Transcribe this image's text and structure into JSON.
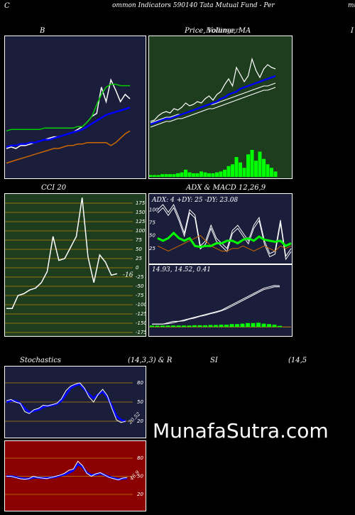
{
  "header": {
    "left_letter": "C",
    "title": "ommon  Indicators 590140  Tata  Mutual Fund  -  Per",
    "right_cut": "mu"
  },
  "panel_titles": {
    "bollinger": "B",
    "price": "Price,",
    "price_overlap": "Volume, MA",
    "price_overlap2": "Bollinger",
    "right_cut": "I",
    "cci": "CCI 20",
    "adx_macd": "ADX  & MACD 12,26,9",
    "stoch_left": "Stochastics",
    "stoch_params": "(14,3,3) & R",
    "rsi_mid": "SI",
    "rsi_params": "(14,5"
  },
  "watermark": "MunafaSutra.com",
  "colors": {
    "navy": "#1b1e3a",
    "green_panel": "#1e3d1e",
    "red_panel": "#8b0000",
    "blue_line": "#0000ff",
    "green_line": "#00cc00",
    "orange_line": "#cc6600",
    "volume_bar": "#00ff00"
  },
  "chart_data": [
    {
      "type": "line",
      "name": "bollinger",
      "series": [
        {
          "color": "#ffffff",
          "values": [
            118,
            119,
            118,
            120,
            120,
            121,
            122,
            123,
            124,
            125,
            126,
            126,
            127,
            128,
            129,
            131,
            133,
            136,
            140,
            142,
            160,
            150,
            165,
            158,
            150,
            155,
            152
          ]
        },
        {
          "color": "#0000ff",
          "values": [
            119,
            120,
            120,
            121,
            121,
            122,
            122,
            123,
            124,
            124,
            125,
            126,
            127,
            128,
            129,
            130,
            131,
            133,
            135,
            137,
            139,
            141,
            142,
            143,
            144,
            145,
            146
          ]
        },
        {
          "color": "#00cc00",
          "values": [
            130,
            131,
            131,
            131,
            131,
            131,
            131,
            131,
            132,
            132,
            132,
            132,
            132,
            132,
            132,
            133,
            133,
            136,
            140,
            148,
            155,
            160,
            162,
            162,
            161,
            161,
            161
          ]
        },
        {
          "color": "#cc6600",
          "values": [
            108,
            109,
            110,
            111,
            112,
            113,
            114,
            115,
            116,
            117,
            118,
            118,
            119,
            120,
            120,
            121,
            121,
            122,
            122,
            122,
            122,
            122,
            120,
            122,
            125,
            128,
            130
          ]
        }
      ],
      "ylim": [
        100,
        190
      ]
    },
    {
      "type": "line+bar",
      "name": "price-volume",
      "series": [
        {
          "color": "#ffffff",
          "values": [
            120,
            121,
            124,
            126,
            127,
            126,
            129,
            128,
            130,
            133,
            131,
            132,
            134,
            133,
            136,
            138,
            135,
            139,
            141,
            146,
            150,
            145,
            158,
            153,
            148,
            152,
            164,
            156,
            151,
            157,
            160,
            158,
            157
          ]
        },
        {
          "color": "#0000ff",
          "values": [
            118,
            119,
            120,
            121,
            122,
            122,
            123,
            124,
            125,
            126,
            127,
            128,
            129,
            130,
            131,
            132,
            133,
            134,
            136,
            137,
            139,
            140,
            141,
            143,
            144,
            145,
            146,
            147,
            148,
            149,
            150,
            151,
            152
          ]
        },
        {
          "color": "#cccccc",
          "values": [
            116,
            117,
            118,
            119,
            120,
            120,
            121,
            122,
            122,
            123,
            124,
            125,
            126,
            127,
            128,
            129,
            129,
            130,
            131,
            132,
            133,
            134,
            135,
            136,
            137,
            138,
            139,
            140,
            141,
            142,
            142,
            143,
            144
          ]
        }
      ],
      "volume": [
        2,
        2,
        2,
        3,
        3,
        3,
        3,
        4,
        5,
        8,
        5,
        4,
        4,
        6,
        5,
        4,
        4,
        5,
        6,
        8,
        12,
        14,
        22,
        16,
        10,
        25,
        30,
        18,
        28,
        20,
        14,
        10,
        6
      ],
      "ylim": [
        100,
        175
      ]
    },
    {
      "type": "line",
      "name": "cci",
      "title": "CCI 20",
      "y_ticks": [
        175,
        150,
        125,
        100,
        75,
        50,
        25,
        0,
        -25,
        -50,
        -75,
        -100,
        -125,
        -150,
        -175
      ],
      "ylim": [
        -175,
        175
      ],
      "values": [
        -110,
        -110,
        -75,
        -70,
        -60,
        -55,
        -40,
        -10,
        85,
        20,
        25,
        55,
        85,
        190,
        30,
        -40,
        35,
        15,
        -20,
        -16
      ],
      "last_label": "-16"
    },
    {
      "type": "line",
      "name": "adx",
      "title": "ADX: 4  +DY: 25 -DY: 23.08",
      "y_ticks": [
        100,
        75,
        50,
        25
      ],
      "ylim": [
        0,
        110
      ],
      "series": [
        {
          "color": "#ffffff",
          "values": [
            100,
            110,
            95,
            110,
            85,
            55,
            100,
            90,
            30,
            40,
            70,
            45,
            35,
            25,
            60,
            70,
            55,
            40,
            70,
            85,
            40,
            15,
            20,
            80,
            10,
            25
          ]
        },
        {
          "color": "#00ff00",
          "values": [
            45,
            40,
            45,
            55,
            45,
            40,
            45,
            30,
            28,
            30,
            30,
            35,
            35,
            40,
            40,
            35,
            42,
            45,
            40,
            48,
            42,
            40,
            38,
            40,
            30,
            35
          ]
        },
        {
          "color": "#cc6600",
          "values": [
            30,
            25,
            20,
            25,
            30,
            35,
            40,
            45,
            50,
            40,
            30,
            25,
            20,
            20,
            25,
            25,
            30,
            25,
            20,
            25,
            30,
            25,
            20,
            30,
            25,
            30
          ]
        }
      ]
    },
    {
      "type": "bar+line",
      "name": "macd",
      "title": "14.93,  14.52,  0.41",
      "ylim": [
        -2,
        16
      ],
      "macd": [
        1,
        1,
        1,
        1.5,
        2,
        2,
        2.5,
        3,
        3.5,
        4,
        4.5,
        5,
        5.5,
        6,
        7,
        8,
        9,
        10,
        11,
        12,
        13,
        14,
        14.5,
        15,
        14.9
      ],
      "signal": [
        1,
        1,
        1,
        1.2,
        1.5,
        2,
        2.2,
        2.8,
        3.2,
        3.8,
        4.2,
        4.8,
        5.2,
        5.8,
        6.5,
        7.5,
        8.5,
        9.5,
        10.5,
        11.5,
        12.5,
        13.5,
        14,
        14.5,
        14.5
      ],
      "hist": [
        0.5,
        0.5,
        0.5,
        0.5,
        0.5,
        0.5,
        0.5,
        0.5,
        0.6,
        0.6,
        0.6,
        0.7,
        0.7,
        0.8,
        0.8,
        1,
        1,
        1.2,
        1.4,
        1.4,
        1.5,
        1.2,
        1.0,
        0.8,
        0.4
      ]
    },
    {
      "type": "line",
      "name": "stochastics",
      "y_ticks": [
        80,
        50,
        20
      ],
      "ylim": [
        0,
        100
      ],
      "k": [
        52,
        54,
        50,
        48,
        35,
        32,
        38,
        40,
        45,
        44,
        46,
        48,
        55,
        68,
        75,
        78,
        80,
        72,
        58,
        50,
        62,
        70,
        60,
        40,
        22,
        18,
        20
      ],
      "d": [
        50,
        52,
        52,
        48,
        40,
        34,
        36,
        38,
        42,
        44,
        45,
        47,
        52,
        62,
        72,
        76,
        78,
        70,
        62,
        56,
        62,
        66,
        58,
        44,
        28,
        22,
        20
      ],
      "last_label": "20.52"
    },
    {
      "type": "line",
      "name": "rsi",
      "y_ticks": [
        80,
        50,
        20
      ],
      "ylim": [
        0,
        100
      ],
      "values": [
        50,
        50,
        48,
        46,
        45,
        46,
        50,
        48,
        47,
        46,
        48,
        50,
        52,
        55,
        60,
        62,
        75,
        68,
        55,
        50,
        54,
        56,
        52,
        48,
        46,
        44,
        47,
        48
      ],
      "smooth": [
        50,
        50,
        49,
        47,
        46,
        46,
        48,
        48,
        47,
        47,
        48,
        49,
        51,
        53,
        56,
        60,
        70,
        66,
        56,
        52,
        53,
        55,
        52,
        49,
        47,
        45,
        46,
        47
      ],
      "last_label": "46.9"
    }
  ]
}
